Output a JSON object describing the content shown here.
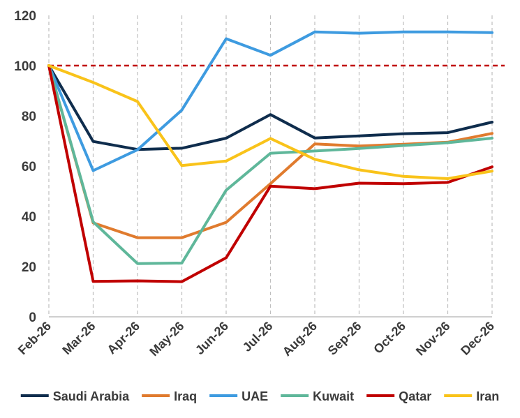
{
  "chart_data": {
    "type": "line",
    "title": "",
    "xlabel": "",
    "ylabel": "",
    "x": [
      "Feb-26",
      "Mar-26",
      "Apr-26",
      "May-26",
      "Jun-26",
      "Jul-26",
      "Aug-26",
      "Sep-26",
      "Oct-26",
      "Nov-26",
      "Dec-26"
    ],
    "ylim": [
      0,
      120
    ],
    "yticks": [
      0,
      20,
      40,
      60,
      80,
      100,
      120
    ],
    "grid": true,
    "legend": "bottom",
    "reference_line": {
      "y": 100,
      "color": "#C00000",
      "style": "dashed"
    },
    "series": [
      {
        "name": "Saudi Arabia",
        "color": "#0F2D4D",
        "values": [
          100,
          69.8,
          66.6,
          67.1,
          71.1,
          80.5,
          71.2,
          72.0,
          72.9,
          73.3,
          77.5
        ]
      },
      {
        "name": "Iraq",
        "color": "#E07B2E",
        "values": [
          100,
          37.4,
          31.5,
          31.5,
          37.6,
          53.0,
          68.8,
          68.0,
          68.7,
          69.5,
          73.0
        ]
      },
      {
        "name": "UAE",
        "color": "#3E9BE0",
        "values": [
          100,
          58.2,
          66.5,
          82.3,
          110.7,
          104.1,
          113.4,
          112.9,
          113.4,
          113.4,
          113.1
        ]
      },
      {
        "name": "Kuwait",
        "color": "#5FB79A",
        "values": [
          100,
          37.8,
          21.2,
          21.4,
          50.4,
          65.1,
          66.0,
          67.0,
          68.2,
          69.3,
          71.1
        ]
      },
      {
        "name": "Qatar",
        "color": "#C00000",
        "values": [
          100,
          14.1,
          14.3,
          14.0,
          23.5,
          52.0,
          51.0,
          53.2,
          53.0,
          53.5,
          59.7
        ]
      },
      {
        "name": "Iran",
        "color": "#F9C31A",
        "values": [
          100,
          93.3,
          85.7,
          60.2,
          62.0,
          71.0,
          62.7,
          58.5,
          55.9,
          55.0,
          58.0
        ]
      }
    ]
  }
}
